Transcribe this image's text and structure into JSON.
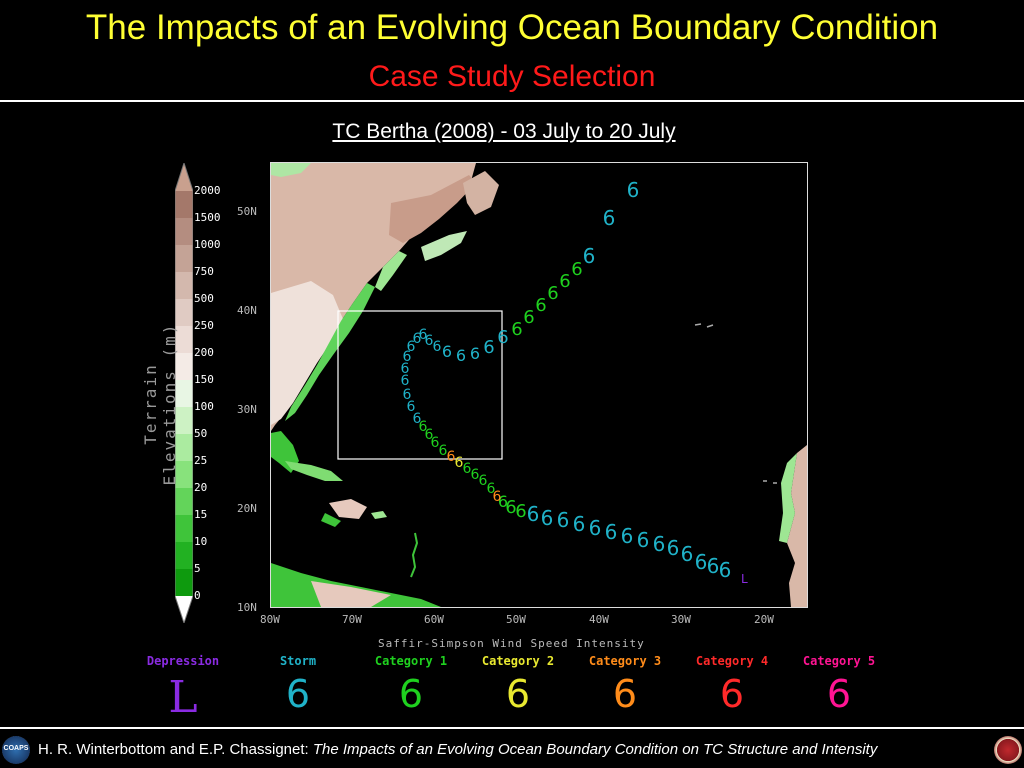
{
  "header": {
    "title": "The Impacts of an Evolving Ocean Boundary Condition",
    "subtitle": "Case Study Selection"
  },
  "map": {
    "title": "TC Bertha (2008) - 03 July to 20 July",
    "lat_labels": [
      "50N",
      "40N",
      "30N",
      "20N",
      "10N"
    ],
    "lon_labels": [
      "80W",
      "70W",
      "60W",
      "50W",
      "40W",
      "30W",
      "20W"
    ],
    "end_marker": "L"
  },
  "colorbar": {
    "title": "Terrain Elevations (m)",
    "labels": [
      "2000",
      "1500",
      "1000",
      "750",
      "500",
      "250",
      "200",
      "150",
      "100",
      "50",
      "25",
      "20",
      "15",
      "10",
      "5",
      "0"
    ]
  },
  "legend": {
    "title": "Saffir-Simpson Wind Speed Intensity",
    "items": [
      {
        "label": "Depression",
        "color": "#8a2be2",
        "symbol": "L"
      },
      {
        "label": "Storm",
        "color": "#20b2c8",
        "symbol": "6"
      },
      {
        "label": "Category 1",
        "color": "#1fd11f",
        "symbol": "6"
      },
      {
        "label": "Category 2",
        "color": "#e8e830",
        "symbol": "6"
      },
      {
        "label": "Category 3",
        "color": "#ff8c1a",
        "symbol": "6"
      },
      {
        "label": "Category 4",
        "color": "#ff2a2a",
        "symbol": "6"
      },
      {
        "label": "Category 5",
        "color": "#ff1493",
        "symbol": "6"
      }
    ]
  },
  "footer": {
    "authors": "H. R. Winterbottom and E.P. Chassignet:",
    "talk_title": "The Impacts of an Evolving Ocean Boundary Condition on TC Structure and Intensity",
    "logo_left": "COAPS"
  }
}
